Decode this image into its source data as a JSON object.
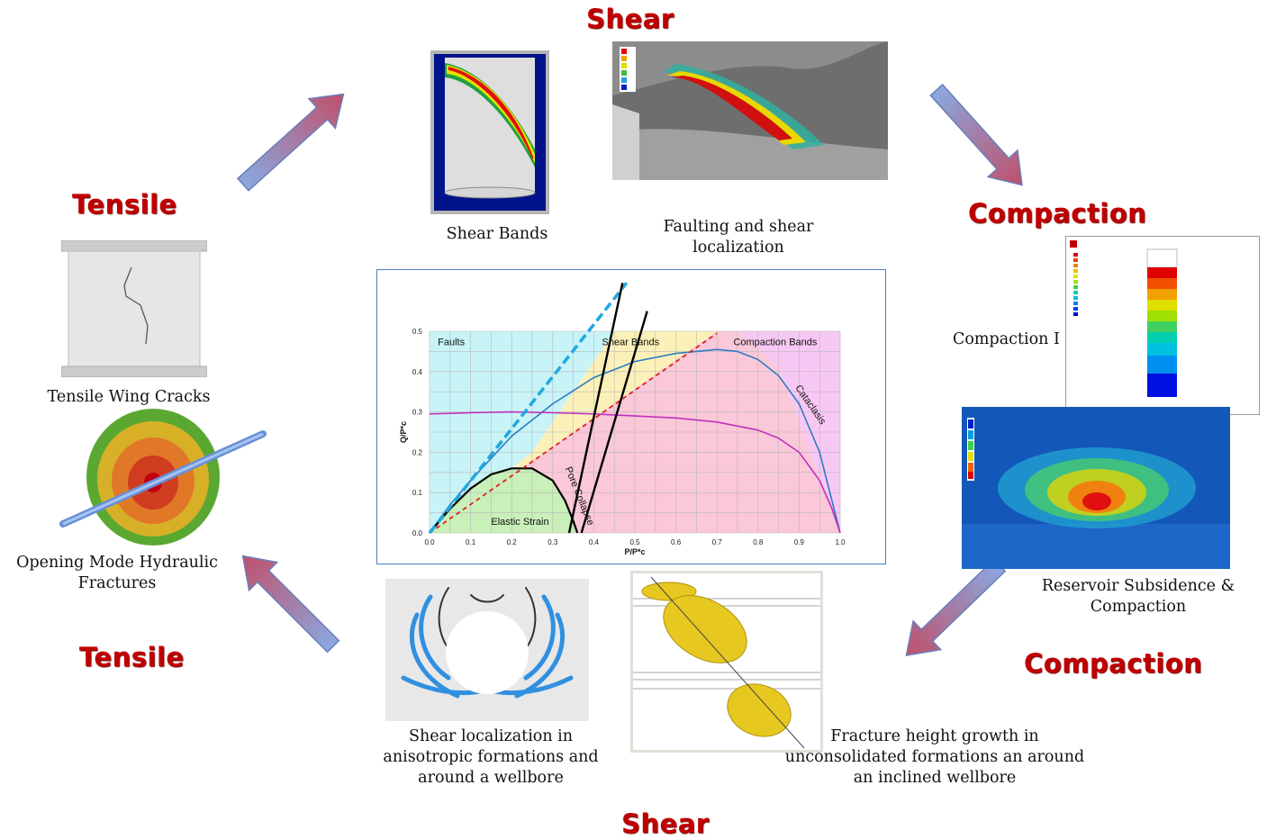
{
  "modes": {
    "top": "Shear",
    "left_top": "Tensile",
    "right_top": "Compaction",
    "left_bottom": "Tensile",
    "right_bottom": "Compaction",
    "bottom": "Shear"
  },
  "captions": {
    "shear_bands": "Shear Bands",
    "faulting_line1": "Faulting and shear",
    "faulting_line2": "localization",
    "compaction_label": "Compaction I",
    "tensile_wing": "Tensile Wing Cracks",
    "opening_mode_line1": "Opening Mode Hydraulic",
    "opening_mode_line2": "Fractures",
    "reservoir_line1": "Reservoir Subsidence &",
    "reservoir_line2": "Compaction",
    "shear_loc_line1": "Shear localization in",
    "shear_loc_line2": "anisotropic formations and",
    "shear_loc_line3": "around a wellbore",
    "fracture_line1": "Fracture height growth in",
    "fracture_line2": "unconsolidated formations an around",
    "fracture_line3": "an inclined wellbore"
  },
  "colors": {
    "mode_red": "#c00000",
    "arrow_blue": "#8aa8e0",
    "arrow_red": "#c0506a"
  },
  "chart_data": {
    "type": "line",
    "xlabel": "P/P*c",
    "ylabel": "Q/P*c",
    "xlim": [
      0.0,
      1.0
    ],
    "ylim": [
      0.0,
      0.5
    ],
    "xticks": [
      "0.0",
      "0.1",
      "0.2",
      "0.3",
      "0.4",
      "0.5",
      "0.6",
      "0.7",
      "0.8",
      "0.9",
      "1.0"
    ],
    "yticks": [
      "0.0",
      "0.1",
      "0.2",
      "0.3",
      "0.4",
      "0.5"
    ],
    "grid": true,
    "region_labels": [
      "Faults",
      "Shear Bands",
      "Compaction Bands",
      "Elastic Strain",
      "Pore Collapse",
      "Cataclasis"
    ],
    "series": [
      {
        "style": "blue-cap",
        "x": [
          0.0,
          0.05,
          0.1,
          0.2,
          0.3,
          0.4,
          0.5,
          0.6,
          0.65,
          0.7,
          0.75,
          0.8,
          0.85,
          0.9,
          0.95,
          1.0
        ],
        "y": [
          0.0,
          0.07,
          0.13,
          0.24,
          0.32,
          0.385,
          0.425,
          0.445,
          0.45,
          0.455,
          0.45,
          0.43,
          0.39,
          0.32,
          0.2,
          0.0
        ]
      },
      {
        "style": "magenta-cap",
        "x": [
          0.0,
          0.1,
          0.2,
          0.3,
          0.4,
          0.5,
          0.6,
          0.7,
          0.8,
          0.85,
          0.9,
          0.95,
          0.98,
          1.0
        ],
        "y": [
          0.295,
          0.298,
          0.3,
          0.298,
          0.295,
          0.29,
          0.285,
          0.275,
          0.255,
          0.235,
          0.2,
          0.13,
          0.06,
          0.0
        ]
      },
      {
        "style": "elastic",
        "x": [
          0.0,
          0.05,
          0.1,
          0.15,
          0.2,
          0.25,
          0.3,
          0.33,
          0.35,
          0.36
        ],
        "y": [
          0.0,
          0.06,
          0.11,
          0.145,
          0.16,
          0.16,
          0.13,
          0.08,
          0.03,
          0.0
        ]
      },
      {
        "style": "red-dashed",
        "x": [
          0.0,
          0.7
        ],
        "y": [
          0.0,
          0.495
        ]
      },
      {
        "style": "cyan-dashed",
        "x": [
          0.0,
          0.48
        ],
        "y": [
          0.0,
          0.62
        ]
      },
      {
        "style": "black",
        "x": [
          0.34,
          0.47
        ],
        "y": [
          0.0,
          0.62
        ]
      },
      {
        "style": "black",
        "x": [
          0.37,
          0.53
        ],
        "y": [
          0.0,
          0.55
        ]
      }
    ]
  }
}
